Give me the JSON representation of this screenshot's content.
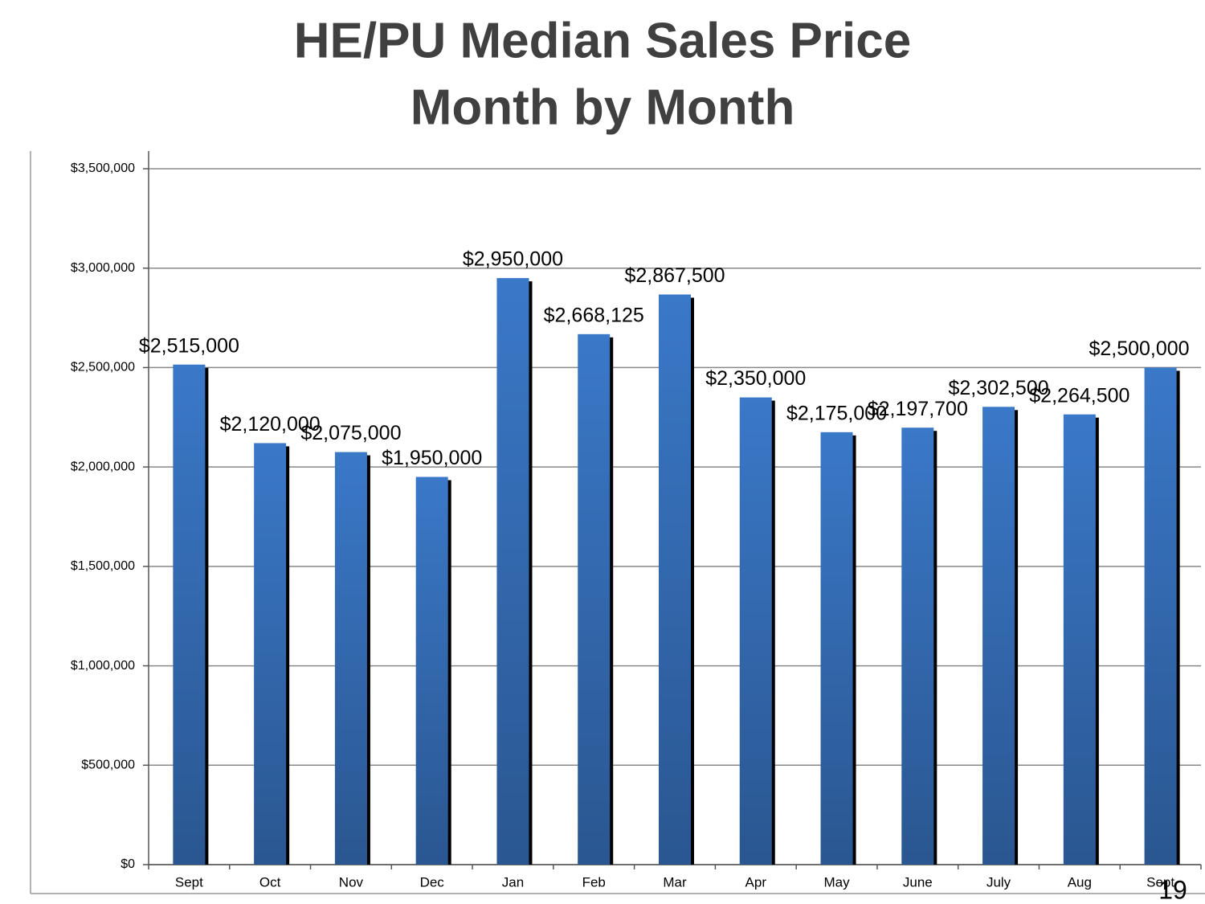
{
  "chart_data": {
    "type": "bar",
    "title": [
      "HE/PU Median Sales Price",
      "Month by Month"
    ],
    "categories": [
      "Sept",
      "Oct",
      "Nov",
      "Dec",
      "Jan",
      "Feb",
      "Mar",
      "Apr",
      "May",
      "June",
      "July",
      "Aug",
      "Sept"
    ],
    "values": [
      2515000,
      2120000,
      2075000,
      1950000,
      2950000,
      2668125,
      2867500,
      2350000,
      2175000,
      2197700,
      2302500,
      2264500,
      2500000
    ],
    "value_labels": [
      "$2,515,000",
      "$2,120,000",
      "$2,075,000",
      "$1,950,000",
      "$2,950,000",
      "$2,668,125",
      "$2,867,500",
      "$2,350,000",
      "$2,175,000",
      "$2,197,700",
      "$2,302,500",
      "$2,264,500",
      "$2,500,000"
    ],
    "color": "#3a78c8",
    "ylim": [
      0,
      3500000
    ],
    "yticks": [
      {
        "value": 0,
        "label": "$0"
      },
      {
        "value": 500000,
        "label": "$500,000"
      },
      {
        "value": 1000000,
        "label": "$1,000,000"
      },
      {
        "value": 1500000,
        "label": "$1,500,000"
      },
      {
        "value": 2000000,
        "label": "$2,000,000"
      },
      {
        "value": 2500000,
        "label": "$2,500,000"
      },
      {
        "value": 3000000,
        "label": "$3,000,000"
      },
      {
        "value": 3500000,
        "label": "$3,500,000"
      }
    ],
    "grid": true
  },
  "page_number": "19"
}
